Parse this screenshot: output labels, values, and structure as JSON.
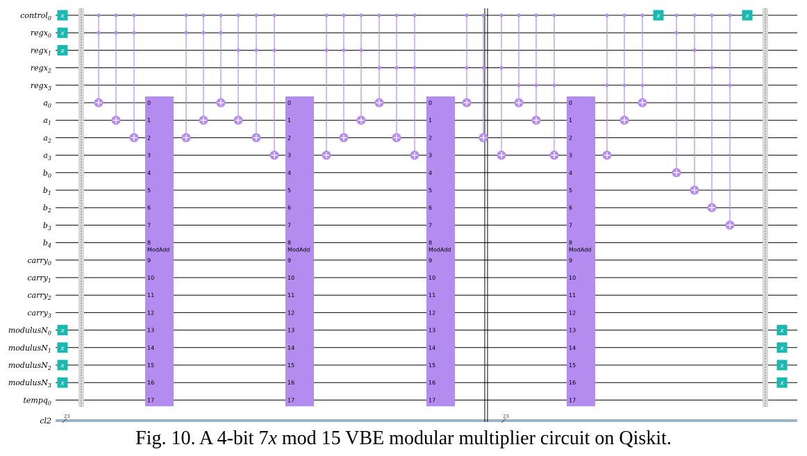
{
  "qubit_labels": [
    {
      "base": "control",
      "sub": "0"
    },
    {
      "base": "regx",
      "sub": "0"
    },
    {
      "base": "regx",
      "sub": "1"
    },
    {
      "base": "regx",
      "sub": "2"
    },
    {
      "base": "regx",
      "sub": "3"
    },
    {
      "base": "a",
      "sub": "0"
    },
    {
      "base": "a",
      "sub": "1"
    },
    {
      "base": "a",
      "sub": "2"
    },
    {
      "base": "a",
      "sub": "3"
    },
    {
      "base": "b",
      "sub": "0"
    },
    {
      "base": "b",
      "sub": "1"
    },
    {
      "base": "b",
      "sub": "2"
    },
    {
      "base": "b",
      "sub": "3"
    },
    {
      "base": "b",
      "sub": "4"
    },
    {
      "base": "carry",
      "sub": "0"
    },
    {
      "base": "carry",
      "sub": "1"
    },
    {
      "base": "carry",
      "sub": "2"
    },
    {
      "base": "carry",
      "sub": "3"
    },
    {
      "base": "modulusN",
      "sub": "0"
    },
    {
      "base": "modulusN",
      "sub": "1"
    },
    {
      "base": "modulusN",
      "sub": "2"
    },
    {
      "base": "modulusN",
      "sub": "3"
    },
    {
      "base": "tempq",
      "sub": "0"
    }
  ],
  "classical_label": "cl2",
  "classical_count": "23",
  "gate_name": "ModAdd",
  "gate_indices": [
    "0",
    "1",
    "2",
    "3",
    "4",
    "5",
    "6",
    "7",
    "8",
    "9",
    "10",
    "11",
    "12",
    "13",
    "14",
    "15",
    "16",
    "17"
  ],
  "x_label": "x",
  "caption": {
    "pre": "Fig. 10. A 4-bit 7",
    "var": "x",
    "post": " mod 15 VBE modular multiplier circuit on Qiskit."
  }
}
